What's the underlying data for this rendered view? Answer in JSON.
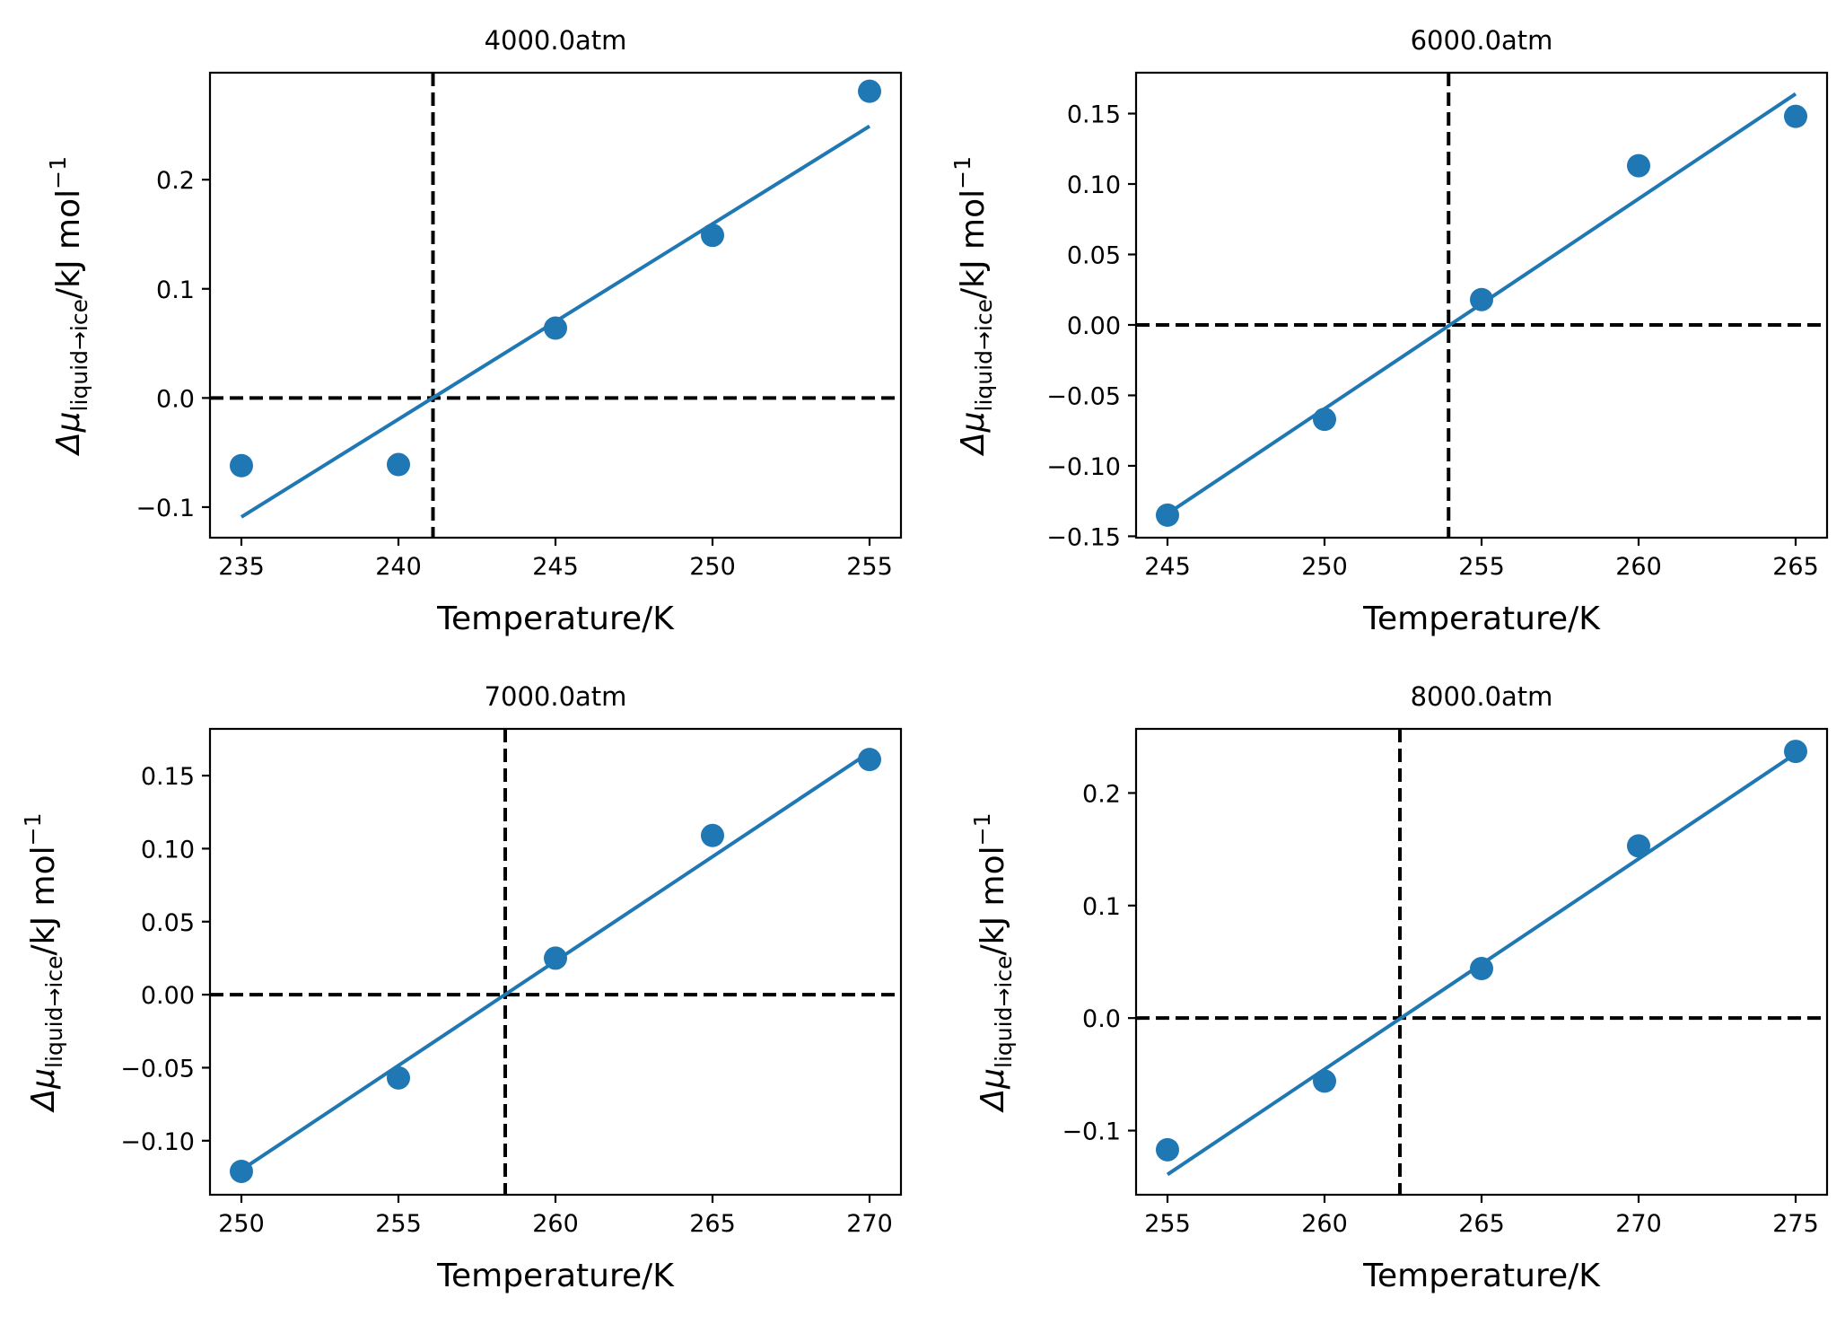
{
  "colors": {
    "series": "#1f77b4",
    "reference": "#000000"
  },
  "chart_data": [
    {
      "type": "scatter",
      "title": "4000.0atm",
      "xlabel": "Temperature/K",
      "ylabel": {
        "main": "Δμ",
        "sub": "liquid→ice",
        "unit": "/kJ mol",
        "sup": "−1"
      },
      "xlim": [
        234,
        256
      ],
      "ylim": [
        -0.128,
        0.298
      ],
      "xticks": [
        235,
        240,
        245,
        250,
        255
      ],
      "yticks": [
        -0.1,
        0.0,
        0.1,
        0.2
      ],
      "ytick_labels": [
        "−0.1",
        "0.0",
        "0.1",
        "0.2"
      ],
      "points": {
        "x": [
          235,
          240,
          245,
          250,
          255
        ],
        "y": [
          -0.062,
          -0.061,
          0.064,
          0.149,
          0.281
        ]
      },
      "fit": {
        "x": [
          235,
          255
        ],
        "y": [
          -0.109,
          0.249
        ]
      },
      "vline": 241.1,
      "hline": 0.0
    },
    {
      "type": "scatter",
      "title": "6000.0atm",
      "xlabel": "Temperature/K",
      "ylabel": {
        "main": "Δμ",
        "sub": "liquid→ice",
        "unit": "/kJ mol",
        "sup": "−1"
      },
      "xlim": [
        244,
        266
      ],
      "ylim": [
        -0.151,
        0.179
      ],
      "xticks": [
        245,
        250,
        255,
        260,
        265
      ],
      "yticks": [
        -0.15,
        -0.1,
        -0.05,
        0.0,
        0.05,
        0.1,
        0.15
      ],
      "ytick_labels": [
        "−0.15",
        "−0.10",
        "−0.05",
        "0.00",
        "0.05",
        "0.10",
        "0.15"
      ],
      "points": {
        "x": [
          245,
          250,
          255,
          260,
          265
        ],
        "y": [
          -0.135,
          -0.067,
          0.018,
          0.113,
          0.148
        ]
      },
      "fit": {
        "x": [
          245,
          265
        ],
        "y": [
          -0.134,
          0.164
        ]
      },
      "vline": 253.95,
      "hline": 0.0
    },
    {
      "type": "scatter",
      "title": "7000.0atm",
      "xlabel": "Temperature/K",
      "ylabel": {
        "main": "Δμ",
        "sub": "liquid→ice",
        "unit": "/kJ mol",
        "sup": "−1"
      },
      "xlim": [
        249,
        271
      ],
      "ylim": [
        -0.137,
        0.182
      ],
      "xticks": [
        250,
        255,
        260,
        265,
        270
      ],
      "yticks": [
        -0.1,
        -0.05,
        0.0,
        0.05,
        0.1,
        0.15
      ],
      "ytick_labels": [
        "−0.10",
        "−0.05",
        "0.00",
        "0.05",
        "0.10",
        "0.15"
      ],
      "points": {
        "x": [
          250,
          255,
          260,
          265,
          270
        ],
        "y": [
          -0.121,
          -0.057,
          0.025,
          0.109,
          0.161
        ]
      },
      "fit": {
        "x": [
          250,
          270
        ],
        "y": [
          -0.12,
          0.166
        ]
      },
      "vline": 258.4,
      "hline": 0.0
    },
    {
      "type": "scatter",
      "title": "8000.0atm",
      "xlabel": "Temperature/K",
      "ylabel": {
        "main": "Δμ",
        "sub": "liquid→ice",
        "unit": "/kJ mol",
        "sup": "−1"
      },
      "xlim": [
        254,
        276
      ],
      "ylim": [
        -0.157,
        0.257
      ],
      "xticks": [
        255,
        260,
        265,
        270,
        275
      ],
      "yticks": [
        -0.1,
        0.0,
        0.1,
        0.2
      ],
      "ytick_labels": [
        "−0.1",
        "0.0",
        "0.1",
        "0.2"
      ],
      "points": {
        "x": [
          255,
          260,
          265,
          270,
          275
        ],
        "y": [
          -0.117,
          -0.056,
          0.044,
          0.153,
          0.237
        ]
      },
      "fit": {
        "x": [
          255,
          275
        ],
        "y": [
          -0.139,
          0.235
        ]
      },
      "vline": 262.4,
      "hline": 0.0
    }
  ]
}
